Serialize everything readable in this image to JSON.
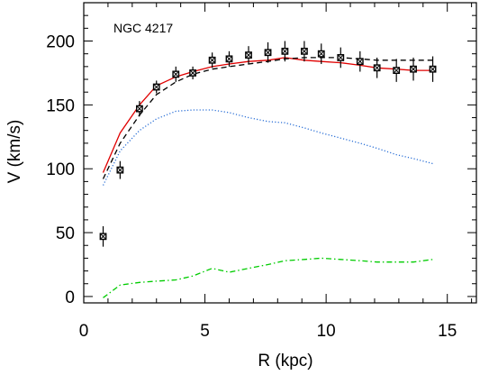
{
  "chart_data": {
    "type": "line",
    "title": "",
    "annotation": "NGC 4217",
    "xlabel": "R (kpc)",
    "ylabel": "V (km/s)",
    "xlim": [
      0,
      16.2
    ],
    "ylim": [
      -5,
      230
    ],
    "xticks": [
      0,
      5,
      10,
      15
    ],
    "yticks": [
      0,
      50,
      100,
      150,
      200
    ],
    "xtick_labels": [
      "0",
      "5",
      "10",
      "15"
    ],
    "ytick_labels": [
      "0",
      "50",
      "100",
      "150",
      "200"
    ],
    "minor_xticks": [
      1,
      2,
      3,
      4,
      6,
      7,
      8,
      9,
      11,
      12,
      13,
      14,
      16
    ],
    "minor_yticks": [
      10,
      20,
      30,
      40,
      60,
      70,
      80,
      90,
      110,
      120,
      130,
      140,
      160,
      170,
      180,
      190,
      210,
      220
    ],
    "grid": false,
    "legend": "none",
    "observed": {
      "x": [
        0.8,
        1.5,
        2.3,
        3.0,
        3.8,
        4.5,
        5.3,
        6.0,
        6.8,
        7.6,
        8.3,
        9.1,
        9.8,
        10.6,
        11.4,
        12.1,
        12.9,
        13.6,
        14.4
      ],
      "y": [
        47,
        99,
        147,
        164,
        174,
        175,
        185,
        186,
        189,
        191,
        192,
        192,
        190,
        187,
        184,
        179,
        177,
        178,
        178
      ],
      "err": [
        8,
        7,
        6,
        5,
        6,
        5,
        6,
        6,
        7,
        8,
        8,
        8,
        8,
        8,
        8,
        8,
        9,
        9,
        10
      ]
    },
    "series": [
      {
        "style": "solid",
        "color": "#e00000",
        "x": [
          0.8,
          1.5,
          2.3,
          3.0,
          3.8,
          4.5,
          5.3,
          6.0,
          6.8,
          7.6,
          8.3,
          9.1,
          9.8,
          10.6,
          11.4,
          12.1,
          12.9,
          13.6,
          14.4
        ],
        "y": [
          97,
          128,
          150,
          165,
          172,
          176,
          180,
          182,
          184,
          185,
          187,
          185,
          184,
          183,
          181,
          179,
          178,
          177,
          177
        ]
      },
      {
        "style": "dashed",
        "color": "#000000",
        "x": [
          0.8,
          1.5,
          2.3,
          3.0,
          3.8,
          4.5,
          5.3,
          6.0,
          6.8,
          7.6,
          8.3,
          9.1,
          9.8,
          10.6,
          11.4,
          12.1,
          12.9,
          13.6,
          14.4
        ],
        "y": [
          92,
          120,
          142,
          158,
          168,
          174,
          178,
          180,
          182,
          184,
          186,
          187,
          187,
          187,
          186,
          185,
          185,
          185,
          185
        ]
      },
      {
        "style": "dotted",
        "color": "#2a6fd6",
        "x": [
          0.8,
          1.5,
          2.3,
          3.0,
          3.8,
          4.5,
          5.3,
          6.0,
          6.8,
          7.6,
          8.3,
          9.1,
          9.8,
          10.6,
          11.4,
          12.1,
          12.9,
          13.6,
          14.4
        ],
        "y": [
          87,
          114,
          130,
          139,
          145,
          146,
          146,
          144,
          140,
          137,
          136,
          132,
          128,
          124,
          120,
          116,
          111,
          108,
          104
        ]
      },
      {
        "style": "dashdot",
        "color": "#00cc00",
        "x": [
          0.8,
          1.5,
          2.3,
          3.0,
          3.8,
          4.5,
          5.3,
          6.0,
          6.8,
          7.6,
          8.3,
          9.1,
          9.8,
          10.6,
          11.4,
          12.1,
          12.9,
          13.6,
          14.4
        ],
        "y": [
          -1,
          9,
          11,
          12,
          13,
          16,
          22,
          19,
          22,
          25,
          28,
          29,
          30,
          29,
          28,
          27,
          27,
          27,
          29
        ]
      }
    ]
  }
}
